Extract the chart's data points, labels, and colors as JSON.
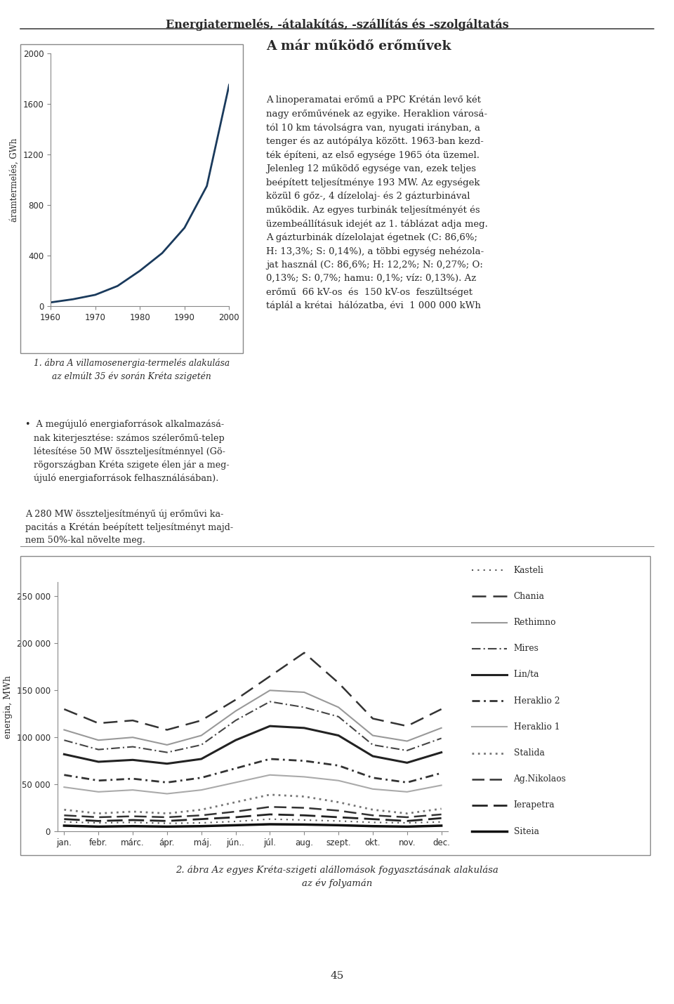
{
  "page_title": "Energiatermelés, -átalakítás, -szállítás és -szolgáltatás",
  "top_chart": {
    "ylabel": "áramtermelés, GWh",
    "years": [
      1960,
      1965,
      1970,
      1975,
      1980,
      1985,
      1990,
      1995,
      2000
    ],
    "values": [
      30,
      55,
      90,
      160,
      280,
      420,
      620,
      950,
      1750
    ],
    "yticks": [
      0,
      400,
      800,
      1200,
      1600,
      2000
    ],
    "xticks": [
      1960,
      1970,
      1980,
      1990,
      2000
    ],
    "ylim": [
      0,
      2000
    ],
    "xlim": [
      1960,
      2000
    ],
    "line_color": "#1a3a5c",
    "line_width": 2.0
  },
  "right_title": "A már működő erőművek",
  "bottom_chart": {
    "ylabel": "energia, MWh",
    "months": [
      "jan.",
      "febr.",
      "márc.",
      "ápr.",
      " máj.",
      "jún..",
      "júl.",
      "aug.",
      "szept.",
      "okt.",
      "nov.",
      "dec."
    ],
    "month_indices": [
      0,
      1,
      2,
      3,
      4,
      5,
      6,
      7,
      8,
      9,
      10,
      11
    ],
    "yticks": [
      0,
      50000,
      100000,
      150000,
      200000,
      250000
    ],
    "ytick_labels": [
      "0",
      "50 000",
      "100 000",
      "150 000",
      "200 000",
      "250 000"
    ],
    "ylim": [
      0,
      265000
    ],
    "series": {
      "Kasteli": [
        10000,
        9000,
        9500,
        8500,
        9000,
        10500,
        13000,
        12000,
        11000,
        9500,
        9000,
        10000
      ],
      "Chania": [
        130000,
        115000,
        118000,
        108000,
        118000,
        140000,
        165000,
        190000,
        158000,
        120000,
        112000,
        130000
      ],
      "Rethimno": [
        108000,
        97000,
        100000,
        92000,
        102000,
        128000,
        150000,
        148000,
        132000,
        102000,
        96000,
        110000
      ],
      "Mires": [
        97000,
        87000,
        90000,
        84000,
        92000,
        118000,
        138000,
        132000,
        122000,
        92000,
        86000,
        99000
      ],
      "Lin/ta": [
        82000,
        74000,
        76000,
        72000,
        77000,
        97000,
        112000,
        110000,
        102000,
        80000,
        73000,
        84000
      ],
      "Heraklio 2": [
        60000,
        54000,
        56000,
        52000,
        57000,
        67000,
        77000,
        75000,
        70000,
        57000,
        52000,
        62000
      ],
      "Heraklio 1": [
        47000,
        42000,
        44000,
        40000,
        44000,
        52000,
        60000,
        58000,
        54000,
        45000,
        42000,
        49000
      ],
      "Stalida": [
        23000,
        19000,
        21000,
        19000,
        23000,
        31000,
        39000,
        37000,
        31000,
        23000,
        19000,
        24000
      ],
      "Ag.Nikolaos": [
        17000,
        15000,
        16000,
        15000,
        17000,
        21000,
        26000,
        25000,
        22000,
        17000,
        15000,
        18000
      ],
      "Ierapetra": [
        13000,
        11000,
        12000,
        11000,
        13000,
        15000,
        18000,
        17000,
        15000,
        13000,
        11000,
        14000
      ],
      "Siteia": [
        6000,
        5000,
        5500,
        5000,
        5500,
        6500,
        7500,
        7200,
        6500,
        5500,
        5000,
        6000
      ]
    },
    "line_styles": {
      "Kasteli": {
        "color": "#555555",
        "linestyle": "dotted",
        "linewidth": 1.5,
        "dashes": [
          1,
          3
        ]
      },
      "Chania": {
        "color": "#333333",
        "linestyle": "dashed",
        "linewidth": 1.8,
        "dashes": [
          8,
          4,
          8,
          4
        ]
      },
      "Rethimno": {
        "color": "#999999",
        "linestyle": "solid",
        "linewidth": 1.5,
        "dashes": null
      },
      "Mires": {
        "color": "#444444",
        "linestyle": "dashdot",
        "linewidth": 1.5,
        "dashes": [
          6,
          2,
          1,
          2
        ]
      },
      "Lin/ta": {
        "color": "#222222",
        "linestyle": "solid",
        "linewidth": 2.2,
        "dashes": null
      },
      "Heraklio 2": {
        "color": "#333333",
        "linestyle": "dashed",
        "linewidth": 2.0,
        "dashes": [
          4,
          2,
          1,
          2
        ]
      },
      "Heraklio 1": {
        "color": "#aaaaaa",
        "linestyle": "solid",
        "linewidth": 1.5,
        "dashes": null
      },
      "Stalida": {
        "color": "#777777",
        "linestyle": "dotted",
        "linewidth": 2.0,
        "dashes": [
          1,
          2
        ]
      },
      "Ag.Nikolaos": {
        "color": "#333333",
        "linestyle": "dashed",
        "linewidth": 1.8,
        "dashes": [
          7,
          3,
          7,
          3
        ]
      },
      "Ierapetra": {
        "color": "#222222",
        "linestyle": "dashed",
        "linewidth": 2.0,
        "dashes": [
          8,
          3
        ]
      },
      "Siteia": {
        "color": "#111111",
        "linestyle": "solid",
        "linewidth": 2.5,
        "dashes": null
      }
    }
  },
  "caption2": "2. ábra Az egyes Kréta-szigeti alállomások fogyasztásának alakulása\naz év folyamán",
  "page_number": "45",
  "background_color": "#ffffff",
  "text_color": "#2a2a2a",
  "light_text": "#555555"
}
